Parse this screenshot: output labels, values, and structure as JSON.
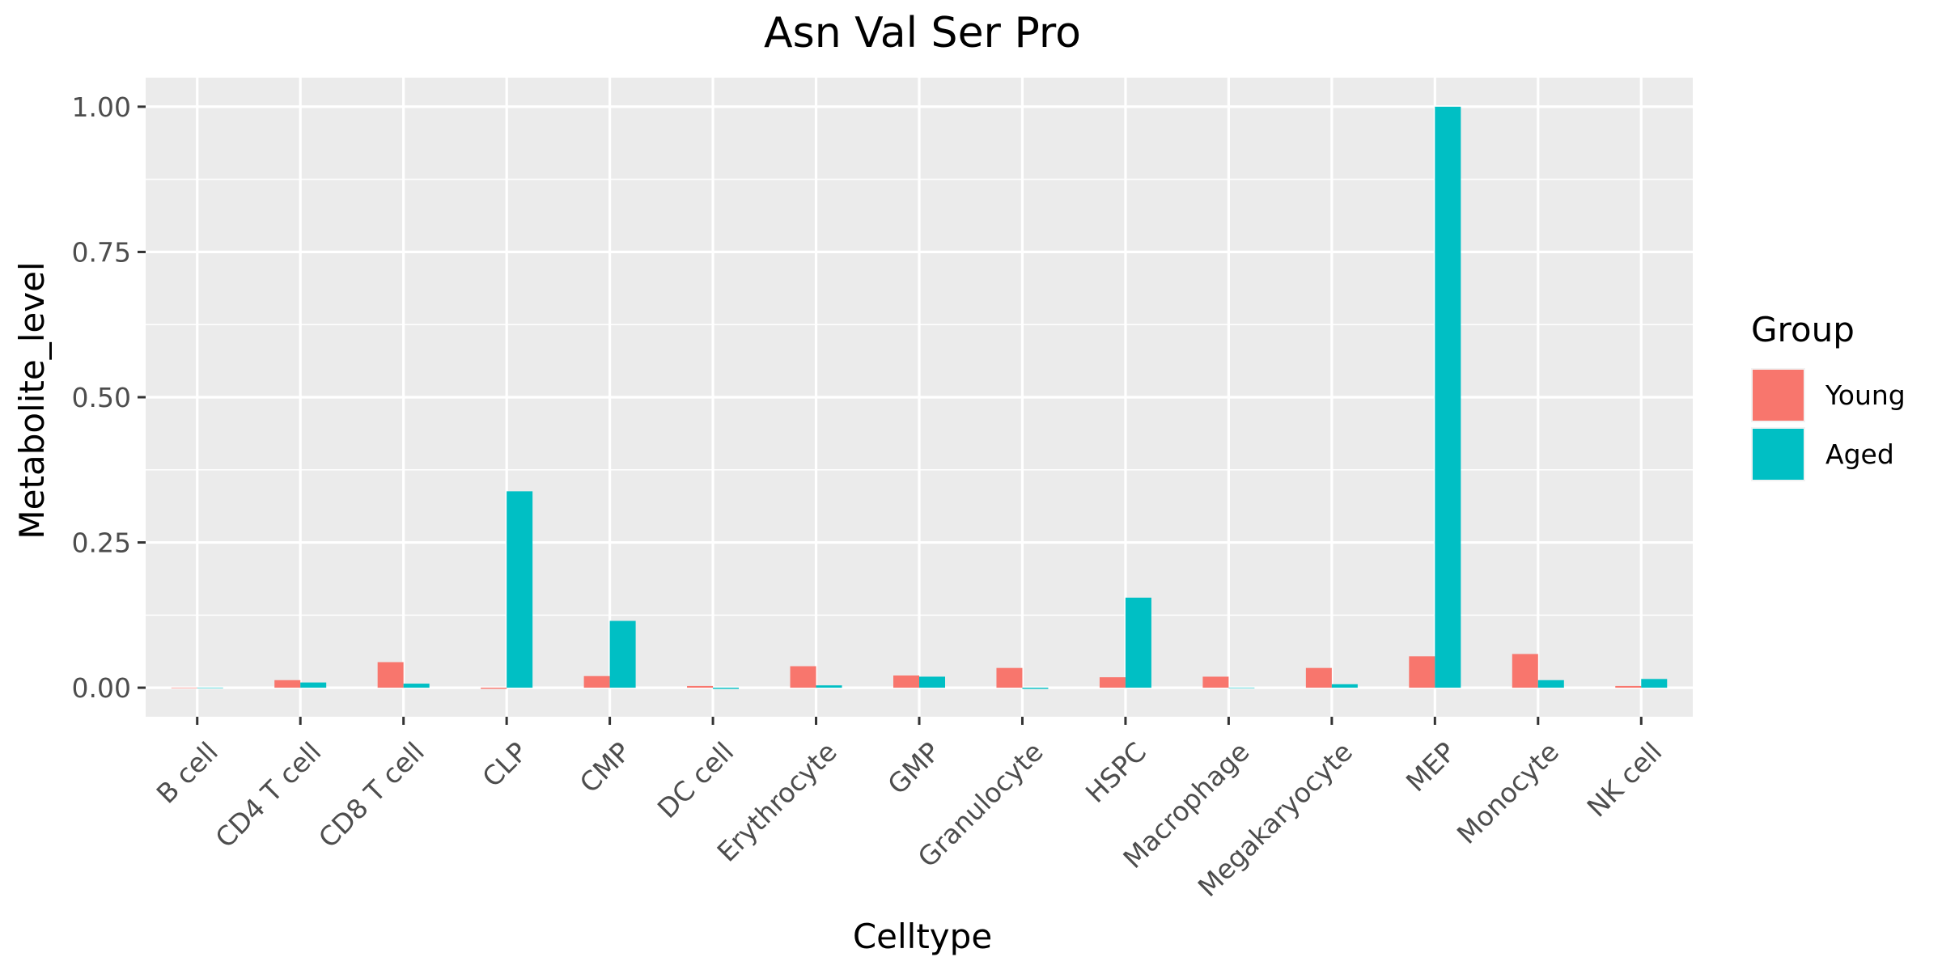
{
  "chart_data": {
    "type": "bar",
    "title": "Asn Val Ser Pro",
    "xlabel": "Celltype",
    "ylabel": "Metabolite_level",
    "categories": [
      "B cell",
      "CD4 T cell",
      "CD8 T cell",
      "CLP",
      "CMP",
      "DC cell",
      "Erythrocyte",
      "GMP",
      "Granulocyte",
      "HSPC",
      "Macrophage",
      "Megakaryocyte",
      "MEP",
      "Monocyte",
      "NK cell"
    ],
    "series": [
      {
        "name": "Young",
        "color": "#F8766D",
        "values": [
          0,
          0.013,
          0.044,
          -0.002,
          0.02,
          0.003,
          0.037,
          0.021,
          0.034,
          0.018,
          0.019,
          0.034,
          0.054,
          0.058,
          0.003
        ]
      },
      {
        "name": "Aged",
        "color": "#00BFC4",
        "values": [
          0,
          0.009,
          0.007,
          0.338,
          0.115,
          -0.002,
          0.004,
          0.019,
          -0.002,
          0.155,
          0,
          0.006,
          1.0,
          0.013,
          0.015
        ]
      }
    ],
    "ylim": [
      -0.05,
      1.05
    ],
    "yticks": [
      0,
      0.25,
      0.5,
      0.75,
      1.0
    ],
    "ytick_labels": [
      "0.00",
      "0.25",
      "0.50",
      "0.75",
      "1.00"
    ],
    "legend": {
      "title": "Group",
      "position": "right"
    },
    "grid": true
  }
}
